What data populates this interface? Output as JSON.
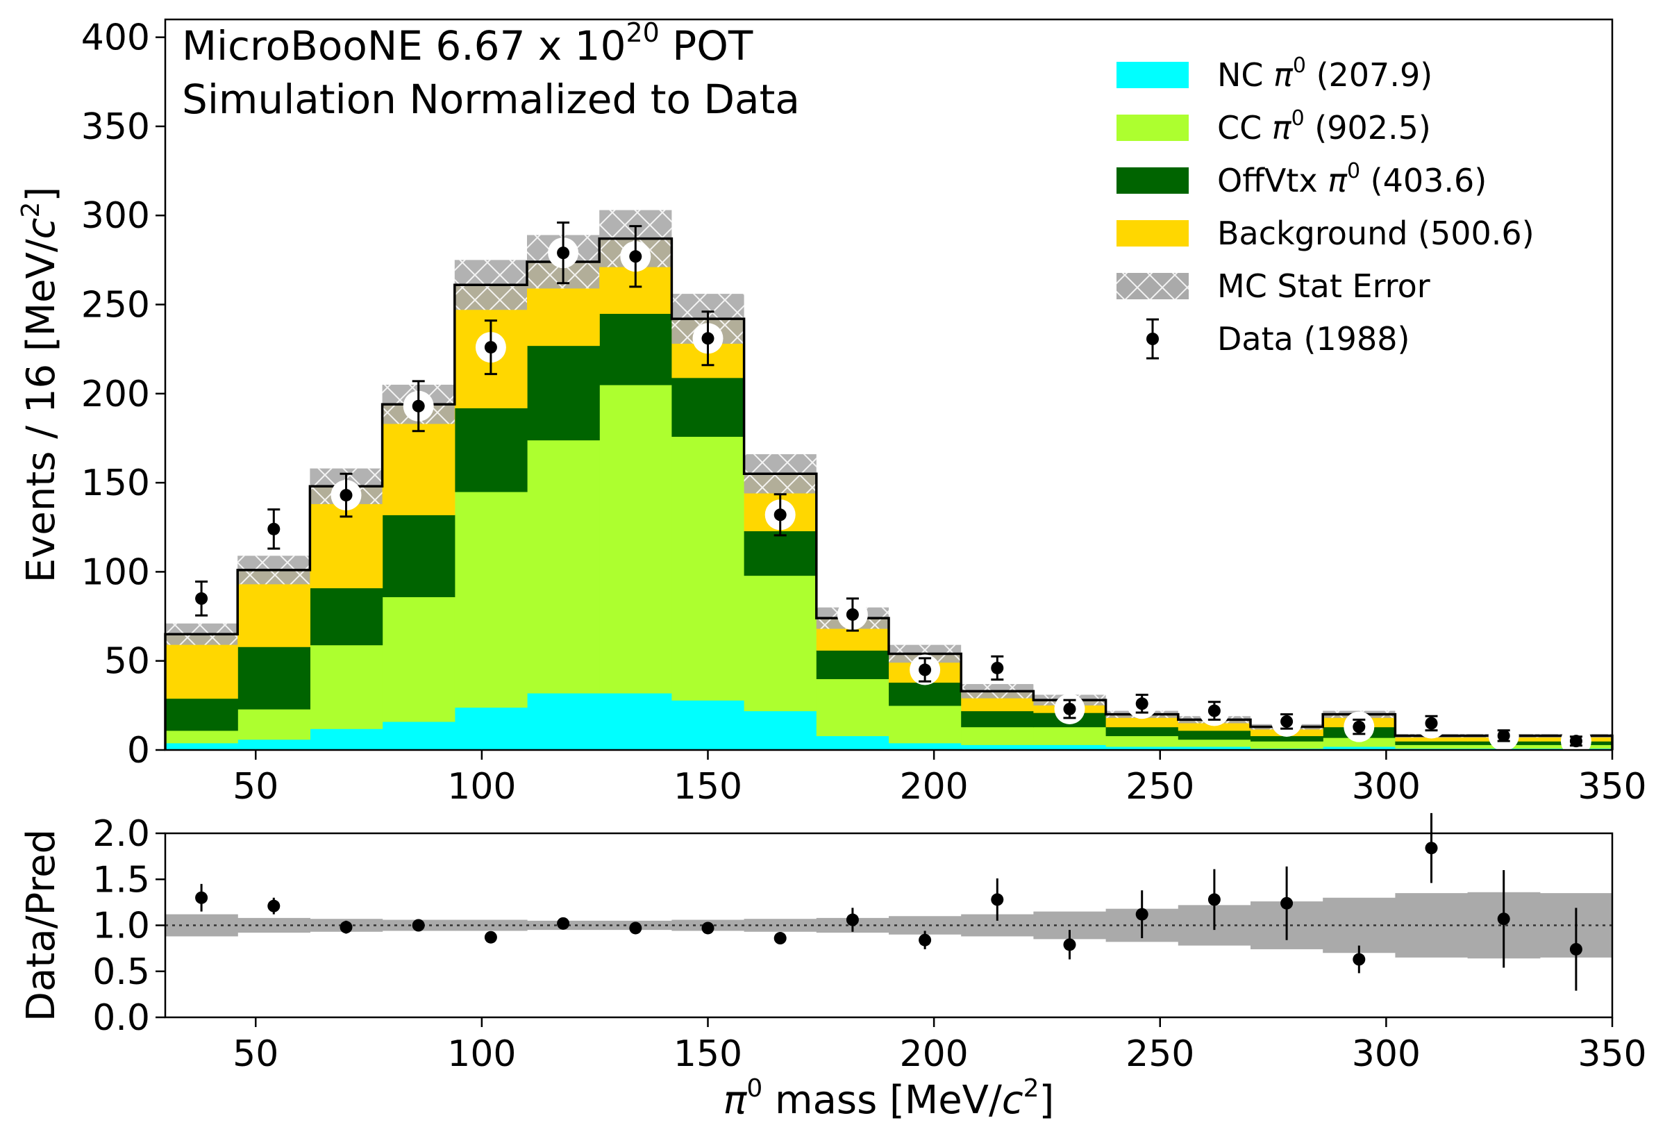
{
  "chart_data": [
    {
      "type": "bar",
      "stacked": true,
      "histogram": true,
      "title_lines": [
        "MicroBooNE 6.67 x 10",
        "Simulation Normalized to Data"
      ],
      "title_superscript": "20",
      "title_suffix": " POT",
      "ylabel": "Events / 16 [MeV/",
      "ylabel_unit_var": "c",
      "ylabel_unit_sup": "2",
      "ylabel_close": "]",
      "xlim": [
        30,
        350
      ],
      "ylim": [
        0,
        410
      ],
      "xticks": [
        "50",
        "100",
        "150",
        "200",
        "250",
        "300",
        "350"
      ],
      "xtick_values": [
        50,
        100,
        150,
        200,
        250,
        300,
        350
      ],
      "yticks": [
        "0",
        "50",
        "100",
        "150",
        "200",
        "250",
        "300",
        "350",
        "400"
      ],
      "ytick_values": [
        0,
        50,
        100,
        150,
        200,
        250,
        300,
        350,
        400
      ],
      "bin_edges": [
        30,
        46,
        62,
        78,
        94,
        110,
        126,
        142,
        158,
        174,
        190,
        206,
        222,
        238,
        254,
        270,
        286,
        302,
        318,
        334,
        350
      ],
      "series": [
        {
          "name": "NC",
          "label_suffix": " (207.9)",
          "color": "#00ffff",
          "values": [
            4,
            6,
            12,
            16,
            24,
            32,
            32,
            28,
            22,
            8,
            4,
            3,
            3,
            2,
            2,
            1,
            2,
            1,
            1,
            1
          ]
        },
        {
          "name": "CC",
          "label_suffix": " (902.5)",
          "color": "#adff2f",
          "values": [
            7,
            17,
            47,
            70,
            121,
            142,
            173,
            148,
            76,
            32,
            21,
            10,
            10,
            6,
            4,
            4,
            5,
            2,
            2,
            2
          ]
        },
        {
          "name": "OffVtx",
          "label_suffix": " (403.6)",
          "color": "#006400",
          "values": [
            18,
            35,
            32,
            46,
            47,
            53,
            40,
            33,
            25,
            16,
            13,
            9,
            8,
            5,
            5,
            3,
            6,
            2,
            2,
            2
          ]
        },
        {
          "name": "Background",
          "label_suffix": " (500.6)",
          "color": "#ffd700",
          "values": [
            36,
            43,
            57,
            62,
            69,
            47,
            42,
            33,
            32,
            18,
            16,
            11,
            7,
            7,
            6,
            5,
            7,
            3,
            3,
            3
          ]
        }
      ],
      "stat_error": {
        "name": "MC Stat Error",
        "color": "#aaaaaa",
        "values": [
          6,
          8,
          10,
          11,
          14,
          15,
          16,
          14,
          11,
          6,
          5,
          4,
          3,
          2,
          2,
          1.5,
          2,
          1,
          1,
          1
        ]
      },
      "data": {
        "name": "Data",
        "label_suffix": " (1988)",
        "x": [
          38,
          54,
          70,
          86,
          102,
          118,
          134,
          150,
          166,
          182,
          198,
          214,
          230,
          246,
          262,
          278,
          294,
          310,
          326,
          342
        ],
        "y": [
          85,
          124,
          143,
          193,
          226,
          279,
          277,
          231,
          132,
          76,
          45,
          46,
          23,
          26,
          22,
          16,
          13,
          15,
          8,
          5
        ],
        "err": [
          9.5,
          11,
          12,
          14,
          15,
          17,
          17,
          15,
          11.5,
          9,
          6.5,
          6.5,
          5,
          5,
          5,
          4,
          4,
          4,
          3,
          2.5
        ]
      },
      "pi_symbol": "π",
      "pi_sup": "0",
      "legend": {
        "position": "top-right"
      }
    },
    {
      "type": "scatter",
      "ylabel": "Data/Pred",
      "xlabel_pre": "π",
      "xlabel_sup": "0",
      "xlabel_mid": " mass [MeV/",
      "xlabel_var": "c",
      "xlabel_unit_sup": "2",
      "xlabel_close": "]",
      "xlim": [
        30,
        350
      ],
      "ylim": [
        0,
        2
      ],
      "xticks": [
        "50",
        "100",
        "150",
        "200",
        "250",
        "300",
        "350"
      ],
      "xtick_values": [
        50,
        100,
        150,
        200,
        250,
        300,
        350
      ],
      "yticks": [
        "0.0",
        "0.5",
        "1.0",
        "1.5",
        "2.0"
      ],
      "ytick_values": [
        0,
        0.5,
        1.0,
        1.5,
        2.0
      ],
      "reference_line": 1.0,
      "band_halfwidth": [
        0.12,
        0.08,
        0.07,
        0.06,
        0.06,
        0.05,
        0.05,
        0.06,
        0.07,
        0.08,
        0.1,
        0.12,
        0.15,
        0.18,
        0.22,
        0.26,
        0.3,
        0.35,
        0.36,
        0.35
      ],
      "x": [
        38,
        54,
        70,
        86,
        102,
        118,
        134,
        150,
        166,
        182,
        198,
        214,
        230,
        246,
        262,
        278,
        294,
        310,
        326,
        342
      ],
      "y": [
        1.3,
        1.21,
        0.98,
        1.0,
        0.87,
        1.02,
        0.97,
        0.97,
        0.86,
        1.06,
        0.84,
        1.28,
        0.79,
        1.12,
        1.28,
        1.24,
        0.63,
        1.84,
        1.07,
        0.74
      ],
      "err": [
        0.15,
        0.09,
        0.07,
        0.06,
        0.05,
        0.05,
        0.05,
        0.06,
        0.06,
        0.13,
        0.1,
        0.23,
        0.16,
        0.26,
        0.33,
        0.4,
        0.15,
        0.38,
        0.53,
        0.45
      ]
    }
  ]
}
